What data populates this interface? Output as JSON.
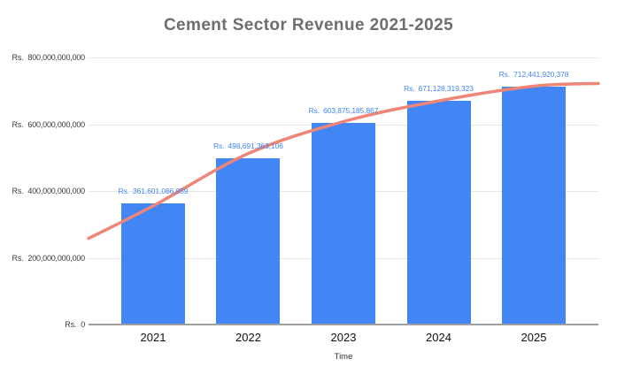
{
  "chart_data": {
    "type": "bar",
    "title": "Cement Sector Revenue 2021-2025",
    "xlabel": "Time",
    "ylabel": "",
    "currency_prefix": "Rs.",
    "categories": [
      "2021",
      "2022",
      "2023",
      "2024",
      "2025"
    ],
    "series": [
      {
        "name": "Revenue",
        "values": [
          361601086959,
          498691363106,
          603875185867,
          671128319323,
          712441920378
        ]
      }
    ],
    "bar_value_labels": [
      "361,601,086,959",
      "498,691,363,106",
      "603,875,185,867",
      "671,128,319,323",
      "712,441,920,378"
    ],
    "ylim": [
      0,
      800000000000
    ],
    "yticks": [
      {
        "value": 0,
        "number": "0"
      },
      {
        "value": 200000000000,
        "number": "200,000,000,000"
      },
      {
        "value": 400000000000,
        "number": "400,000,000,000"
      },
      {
        "value": 600000000000,
        "number": "600,000,000,000"
      },
      {
        "value": 800000000000,
        "number": "800,000,000,000"
      }
    ],
    "grid": "horizontal",
    "legend": "none",
    "trendline": {
      "present": true,
      "points": [
        {
          "x_frac": 0.0,
          "value": 258000000000
        },
        {
          "x_frac": 0.131,
          "value": 359000000000
        },
        {
          "x_frac": 0.313,
          "value": 512000000000
        },
        {
          "x_frac": 0.5,
          "value": 608000000000
        },
        {
          "x_frac": 0.687,
          "value": 670000000000
        },
        {
          "x_frac": 0.873,
          "value": 714000000000
        },
        {
          "x_frac": 1.0,
          "value": 722000000000
        }
      ]
    },
    "colors": {
      "bar": "#4285F4",
      "bar_label": "#4285F4",
      "trendline": "#EE8577",
      "gridline": "#E6E6E6",
      "axis_line": "#9E9E9E",
      "title": "#6E6E6E",
      "y_tick_text": "#3B3B3B",
      "x_tick_text": "#111111",
      "x_axis_title_text": "#333333",
      "background": "#FFFFFF"
    }
  }
}
